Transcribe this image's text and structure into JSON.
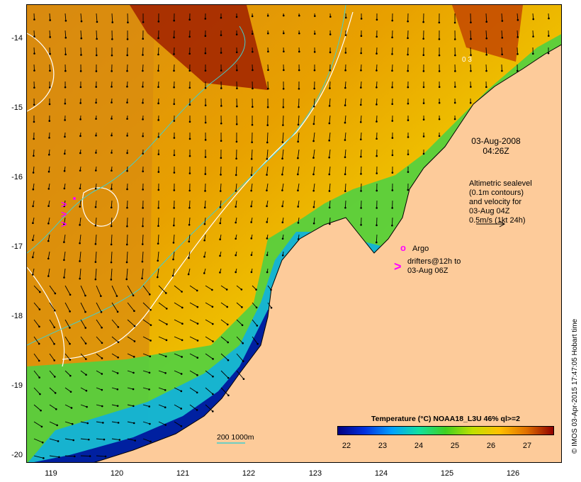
{
  "map": {
    "lon_range": [
      118.6,
      126.7
    ],
    "lat_range": [
      -20.05,
      -13.55
    ],
    "y_ticks": [
      "-14",
      "-15",
      "-16",
      "-17",
      "-18",
      "-19",
      "-20"
    ],
    "x_ticks": [
      "119",
      "120",
      "121",
      "122",
      "123",
      "124",
      "125",
      "126"
    ],
    "land_color": "#fdcb9a",
    "arrow_color": "#000000",
    "contour_color": "#ffffff",
    "isobath_color": "#40d0d0"
  },
  "annotations": {
    "date": "03-Aug-2008",
    "time": "04:26Z",
    "altimetry_lines": [
      "Altimetric sealevel",
      "(0.1m contours)",
      "and velocity for",
      "03-Aug 04Z",
      "0.5m/s (1kt 24h)"
    ],
    "argo_label": "Argo",
    "drifters_lines": [
      "drifters@12h to",
      "03-Aug 06Z"
    ],
    "argo_symbol": "o",
    "drifter_symbol": ">",
    "drifter_color": "#ff00ff",
    "scale_label": "200  1000m",
    "map_label": "0 3"
  },
  "colorbar": {
    "title": "Temperature (°C) NOAA18_L3U 46% ql>=2",
    "ticks": [
      "22",
      "23",
      "24",
      "25",
      "26",
      "27"
    ],
    "range": [
      21.5,
      27.5
    ],
    "colors": [
      "#000080",
      "#0030e0",
      "#00a0ff",
      "#10e0a0",
      "#40d020",
      "#c0e000",
      "#ffc000",
      "#e07000",
      "#900000"
    ]
  },
  "credit": "© IMOS 03-Apr-2015 17:47:05 Hobart time"
}
